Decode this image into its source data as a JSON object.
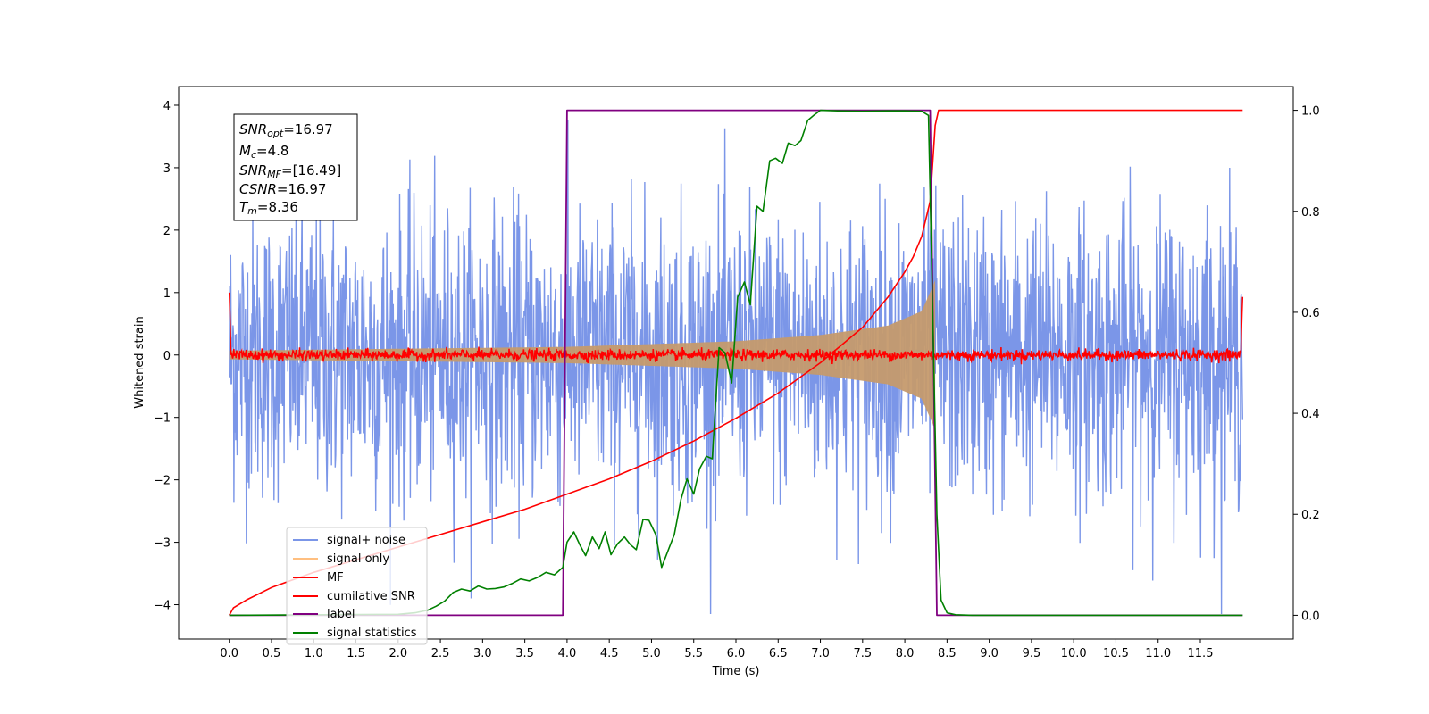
{
  "chart_data": {
    "type": "line",
    "xlabel": "Time (s)",
    "ylabel": "Whitened strain",
    "xlim": [
      -0.6,
      12.6
    ],
    "ylim": [
      -4.55,
      4.3
    ],
    "y2lim": [
      -0.047,
      1.047
    ],
    "xticks": [
      0.0,
      0.5,
      1.0,
      1.5,
      2.0,
      2.5,
      3.0,
      3.5,
      4.0,
      4.5,
      5.0,
      5.5,
      6.0,
      6.5,
      7.0,
      7.5,
      8.0,
      8.5,
      9.0,
      9.5,
      10.0,
      10.5,
      11.0,
      11.5
    ],
    "xtick_labels": [
      "0.0",
      "0.5",
      "1.0",
      "1.5",
      "2.0",
      "2.5",
      "3.0",
      "3.5",
      "4.0",
      "4.5",
      "5.0",
      "5.5",
      "6.0",
      "6.5",
      "7.0",
      "7.5",
      "8.0",
      "8.5",
      "9.0",
      "9.5",
      "10.0",
      "10.5",
      "11.0",
      "11.5"
    ],
    "yticks": [
      -4,
      -3,
      -2,
      -1,
      0,
      1,
      2,
      3,
      4
    ],
    "ytick_labels": [
      "−4",
      "−3",
      "−2",
      "−1",
      "0",
      "1",
      "2",
      "3",
      "4"
    ],
    "y2ticks": [
      0.0,
      0.2,
      0.4,
      0.6,
      0.8,
      1.0
    ],
    "y2tick_labels": [
      "0.0",
      "0.2",
      "0.4",
      "0.6",
      "0.8",
      "1.0"
    ],
    "grid": false,
    "legend_position": "lower-left",
    "stats": {
      "snr_opt": "=16.97",
      "mc": "=4.8",
      "snr_mf": "=[16.49]",
      "csnr": "=16.97",
      "tm": "=8.36"
    },
    "colors": {
      "signal_noise": "#7b96e8",
      "signal_only": "#c59a6d",
      "mf": "#ff0000",
      "cumulative_snr": "#ff0000",
      "label": "#800080",
      "signal_statistics": "#008000"
    },
    "series": [
      {
        "name": "signal+ noise",
        "kind": "noise",
        "x_range": [
          0,
          12
        ],
        "amplitude_sigma": 1.0,
        "peak_range": [
          -4.15,
          3.93
        ]
      },
      {
        "name": "signal only",
        "kind": "chirp_envelope",
        "x_range": [
          0,
          8.36
        ],
        "envelope": [
          [
            0.0,
            0.07
          ],
          [
            4.0,
            0.13
          ],
          [
            6.0,
            0.22
          ],
          [
            7.0,
            0.32
          ],
          [
            7.8,
            0.47
          ],
          [
            8.2,
            0.7
          ],
          [
            8.33,
            1.1
          ],
          [
            8.36,
            1.2
          ]
        ]
      },
      {
        "name": "MF",
        "kind": "noise_band",
        "x_range": [
          0,
          12
        ],
        "amplitude": 0.08,
        "edge_values": [
          [
            0.0,
            1.0
          ],
          [
            0.02,
            0.1
          ],
          [
            11.98,
            0.1
          ],
          [
            12.0,
            0.93
          ]
        ]
      },
      {
        "name": "cumilative SNR",
        "axis": "y2",
        "x": [
          0,
          0.05,
          0.2,
          0.5,
          1.0,
          1.5,
          2.0,
          2.5,
          3.0,
          3.5,
          4.0,
          4.5,
          5.0,
          5.5,
          6.0,
          6.5,
          7.0,
          7.5,
          7.8,
          8.0,
          8.1,
          8.2,
          8.3,
          8.36,
          8.4,
          12.0
        ],
        "y": [
          0.0,
          0.015,
          0.03,
          0.055,
          0.085,
          0.11,
          0.135,
          0.16,
          0.185,
          0.21,
          0.24,
          0.27,
          0.305,
          0.345,
          0.39,
          0.44,
          0.5,
          0.57,
          0.63,
          0.68,
          0.71,
          0.75,
          0.82,
          0.97,
          1.0,
          1.0
        ]
      },
      {
        "name": "label",
        "axis": "y2",
        "x": [
          0,
          3.95,
          4.0,
          8.3,
          8.38,
          12.0
        ],
        "y": [
          0,
          0,
          1,
          1,
          0,
          0
        ]
      },
      {
        "name": "signal statistics",
        "axis": "y2",
        "x": [
          0,
          2.0,
          2.2,
          2.35,
          2.45,
          2.55,
          2.65,
          2.75,
          2.85,
          2.95,
          3.05,
          3.15,
          3.25,
          3.35,
          3.45,
          3.55,
          3.65,
          3.75,
          3.85,
          3.95,
          4.0,
          4.08,
          4.15,
          4.22,
          4.3,
          4.38,
          4.45,
          4.52,
          4.6,
          4.68,
          4.75,
          4.82,
          4.9,
          4.97,
          5.05,
          5.12,
          5.2,
          5.27,
          5.35,
          5.42,
          5.5,
          5.57,
          5.65,
          5.72,
          5.8,
          5.87,
          5.95,
          6.02,
          6.1,
          6.17,
          6.25,
          6.32,
          6.4,
          6.47,
          6.55,
          6.62,
          6.7,
          6.77,
          6.85,
          6.92,
          7.0,
          7.2,
          7.5,
          7.8,
          8.0,
          8.2,
          8.28,
          8.33,
          8.38,
          8.43,
          8.5,
          8.6,
          8.8,
          9.2,
          12.0
        ],
        "y": [
          0.0,
          0.002,
          0.005,
          0.01,
          0.018,
          0.028,
          0.045,
          0.052,
          0.048,
          0.058,
          0.052,
          0.053,
          0.056,
          0.063,
          0.072,
          0.068,
          0.075,
          0.085,
          0.08,
          0.095,
          0.145,
          0.165,
          0.14,
          0.118,
          0.155,
          0.132,
          0.165,
          0.12,
          0.142,
          0.155,
          0.14,
          0.13,
          0.19,
          0.188,
          0.16,
          0.095,
          0.13,
          0.16,
          0.23,
          0.27,
          0.24,
          0.29,
          0.315,
          0.31,
          0.53,
          0.52,
          0.46,
          0.63,
          0.66,
          0.615,
          0.81,
          0.8,
          0.9,
          0.905,
          0.895,
          0.935,
          0.93,
          0.94,
          0.98,
          0.99,
          1.0,
          0.999,
          0.998,
          0.999,
          0.999,
          0.998,
          0.99,
          0.6,
          0.2,
          0.03,
          0.005,
          0.001,
          0.0,
          0.0,
          0.0
        ]
      }
    ],
    "legend": [
      "signal+ noise",
      "signal only",
      "MF",
      "cumilative SNR",
      "label",
      "signal statistics"
    ]
  }
}
